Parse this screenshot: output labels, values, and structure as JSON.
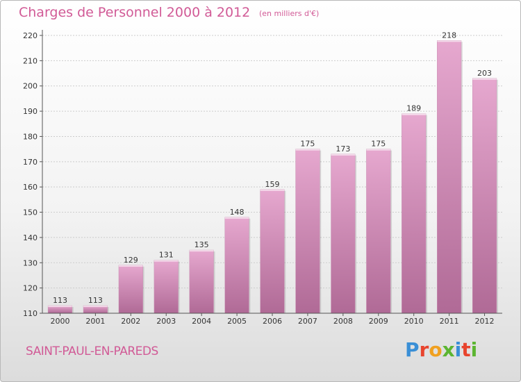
{
  "header": {
    "title": "Charges de Personnel 2000 à 2012",
    "subtitle": "(en milliers d'€)"
  },
  "footer": {
    "location": "SAINT-PAUL-EN-PAREDS",
    "logo_text": "Proxiti",
    "logo_colors": [
      "#3a8fd6",
      "#e8442d",
      "#f0a020",
      "#5cb531",
      "#3a8fd6",
      "#e8442d",
      "#5cb531"
    ]
  },
  "colors": {
    "title": "#d15a96",
    "bar_top": "#e6a8cf",
    "bar_bottom": "#b06a96",
    "axis": "#555555",
    "grid": "#cccccc"
  },
  "chart_data": {
    "type": "bar",
    "categories": [
      "2000",
      "2001",
      "2002",
      "2003",
      "2004",
      "2005",
      "2006",
      "2007",
      "2008",
      "2009",
      "2010",
      "2011",
      "2012"
    ],
    "values": [
      113,
      113,
      129,
      131,
      135,
      148,
      159,
      175,
      173,
      175,
      189,
      218,
      203
    ],
    "ylim": [
      110,
      220
    ],
    "yticks": [
      110,
      120,
      130,
      140,
      150,
      160,
      170,
      180,
      190,
      200,
      210,
      220
    ],
    "grid": true,
    "data_labels": true
  }
}
